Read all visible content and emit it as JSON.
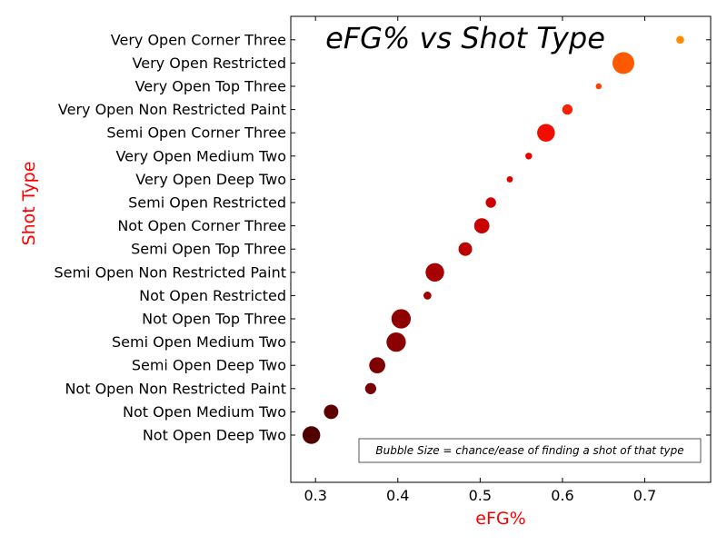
{
  "chart_data": {
    "type": "scatter",
    "title": "eFG% vs Shot Type",
    "xlabel": "eFG%",
    "ylabel": "Shot Type",
    "xlim": [
      0.27,
      0.78
    ],
    "x_ticks": [
      "0.3",
      "0.4",
      "0.5",
      "0.6",
      "0.7"
    ],
    "grid": false,
    "annotation": "Bubble Size = chance/ease of finding a shot of that type",
    "annotation_position": "bottom-right",
    "colormap": "black-red-yellow (by eFG%)",
    "label_color": "#ff0000",
    "points": [
      {
        "shot_type": "Not Open Deep Two",
        "efg": 0.295,
        "size": 0.75
      },
      {
        "shot_type": "Not Open Medium Two",
        "efg": 0.319,
        "size": 0.55
      },
      {
        "shot_type": "Not Open Non Restricted Paint",
        "efg": 0.367,
        "size": 0.35
      },
      {
        "shot_type": "Semi Open Deep Two",
        "efg": 0.375,
        "size": 0.65
      },
      {
        "shot_type": "Semi Open Medium Two",
        "efg": 0.398,
        "size": 0.85
      },
      {
        "shot_type": "Not Open Top Three",
        "efg": 0.404,
        "size": 0.85
      },
      {
        "shot_type": "Not Open Restricted",
        "efg": 0.436,
        "size": 0.15
      },
      {
        "shot_type": "Semi Open Non Restricted Paint",
        "efg": 0.445,
        "size": 0.8
      },
      {
        "shot_type": "Semi Open Top Three",
        "efg": 0.482,
        "size": 0.5
      },
      {
        "shot_type": "Not Open Corner Three",
        "efg": 0.502,
        "size": 0.6
      },
      {
        "shot_type": "Semi Open Restricted",
        "efg": 0.513,
        "size": 0.3
      },
      {
        "shot_type": "Very Open Deep Two",
        "efg": 0.536,
        "size": 0.05
      },
      {
        "shot_type": "Very Open Medium Two",
        "efg": 0.559,
        "size": 0.08
      },
      {
        "shot_type": "Semi Open Corner Three",
        "efg": 0.58,
        "size": 0.75
      },
      {
        "shot_type": "Very Open Non Restricted Paint",
        "efg": 0.606,
        "size": 0.3
      },
      {
        "shot_type": "Very Open Top Three",
        "efg": 0.644,
        "size": 0.03
      },
      {
        "shot_type": "Very Open Restricted",
        "efg": 0.674,
        "size": 1.0
      },
      {
        "shot_type": "Very Open Corner Three",
        "efg": 0.743,
        "size": 0.15
      }
    ]
  }
}
